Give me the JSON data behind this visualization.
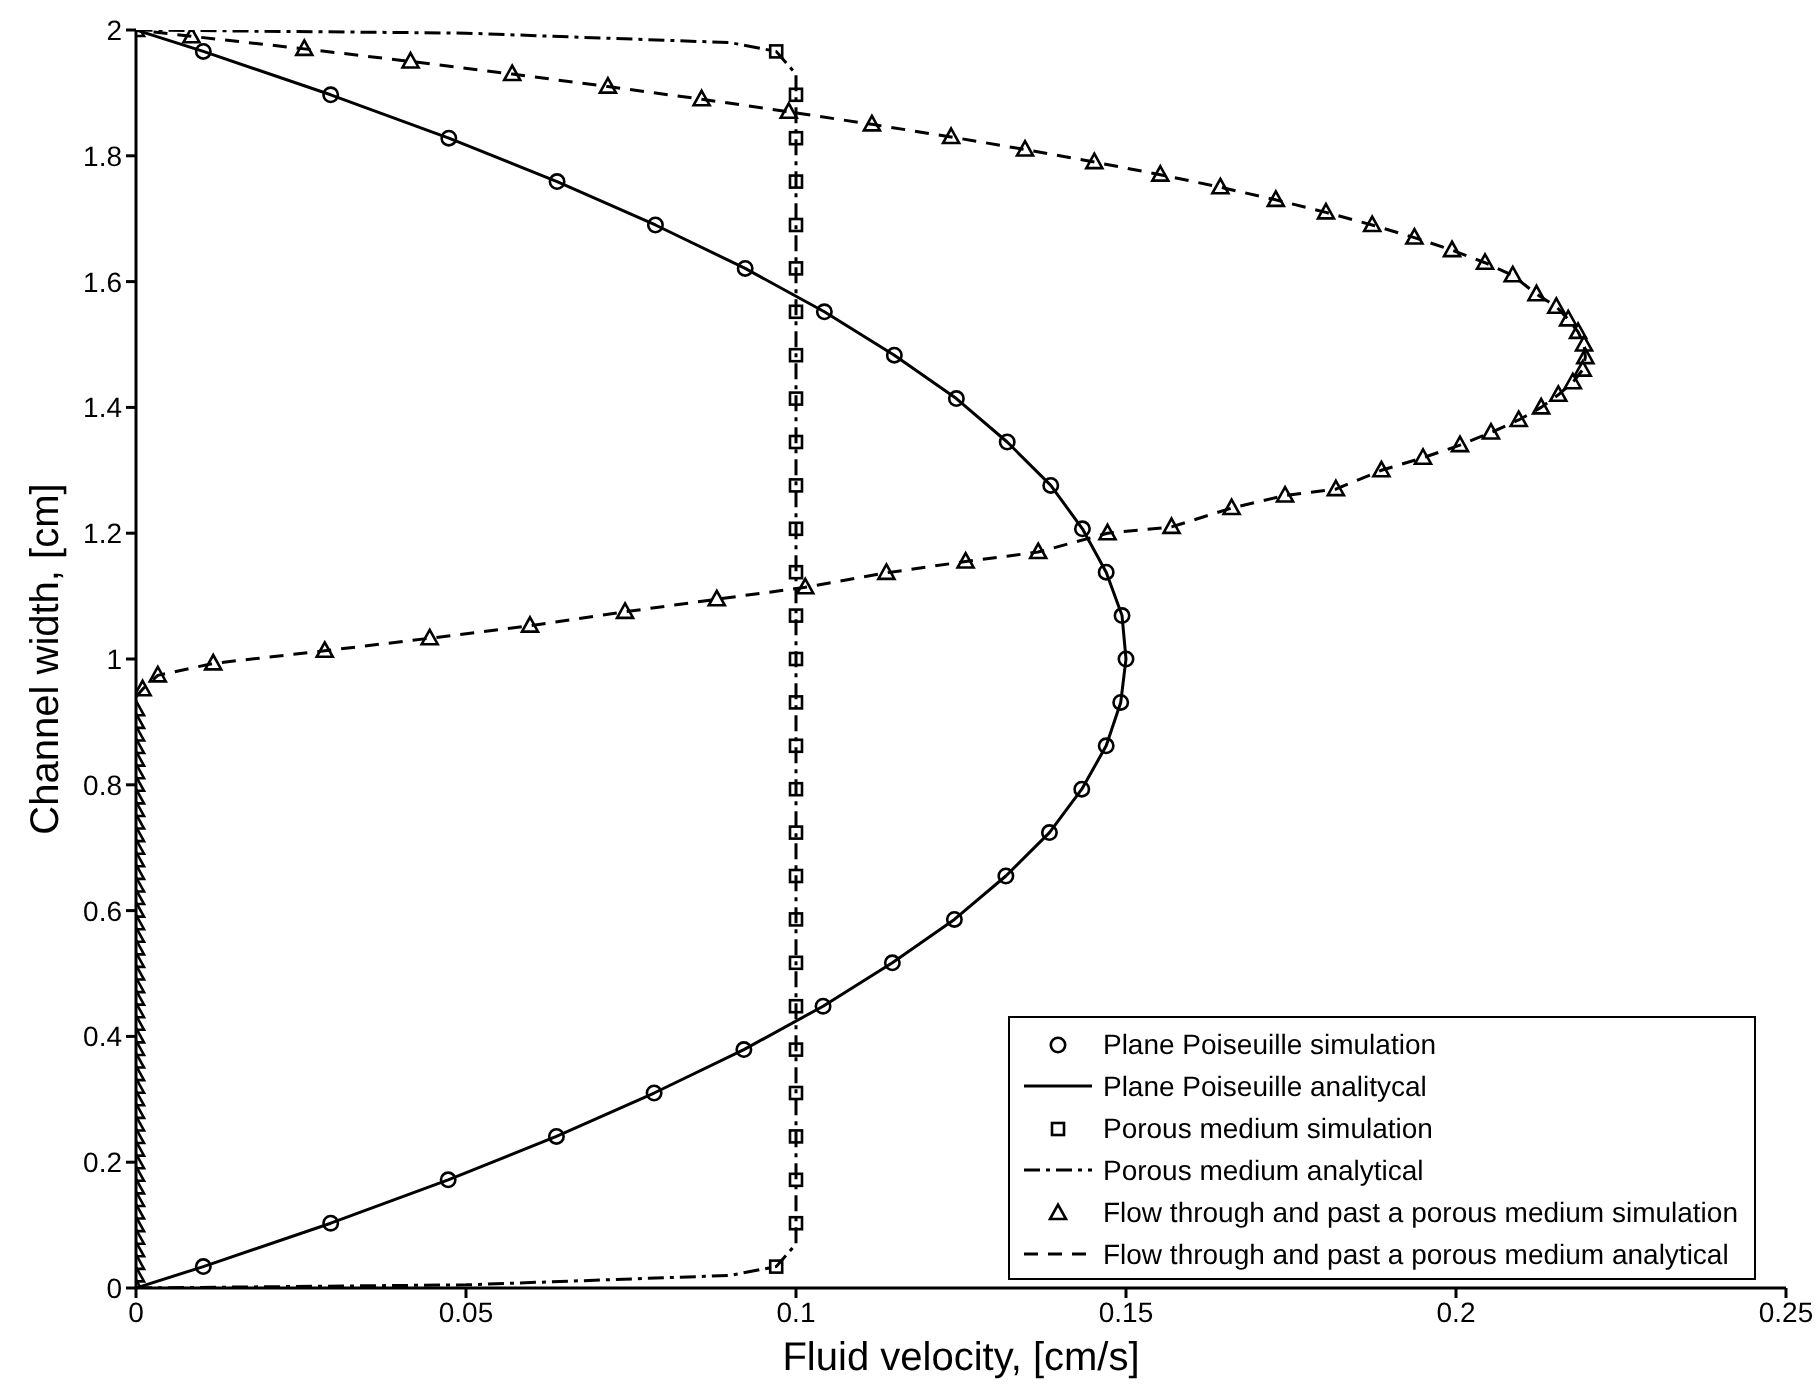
{
  "chart_data": {
    "type": "line",
    "xlabel": "Fluid velocity, [cm/s]",
    "ylabel": "Channel width, [cm]",
    "xlim": [
      0,
      0.25
    ],
    "xticks": [
      0,
      0.05,
      0.1,
      0.15,
      0.2,
      0.25
    ],
    "ylim": [
      0,
      2
    ],
    "yticks": [
      0,
      0.2,
      0.4,
      0.6,
      0.8,
      1,
      1.2,
      1.4,
      1.6,
      1.8,
      2
    ],
    "grid": false,
    "legend": "bottom right",
    "series": [
      {
        "name": "Plane Poiseuille simulation",
        "type": "scatter",
        "marker": "circle",
        "color": "#000000",
        "x": [
          0.0102,
          0.0295,
          0.0473,
          0.0637,
          0.0785,
          0.0921,
          0.1041,
          0.1146,
          0.124,
          0.1318,
          0.1384,
          0.1433,
          0.147,
          0.1492,
          0.15,
          0.1494,
          0.147,
          0.1434,
          0.1386,
          0.132,
          0.1243,
          0.1149,
          0.1043,
          0.0923,
          0.0787,
          0.0638,
          0.0474,
          0.0295,
          0.0102
        ],
        "values": [
          0.034,
          0.103,
          0.172,
          0.241,
          0.31,
          0.379,
          0.448,
          0.517,
          0.586,
          0.655,
          0.724,
          0.793,
          0.862,
          0.931,
          1.0,
          1.069,
          1.138,
          1.207,
          1.276,
          1.345,
          1.414,
          1.483,
          1.552,
          1.621,
          1.69,
          1.759,
          1.828,
          1.897,
          1.966
        ]
      },
      {
        "name": "Plane Poiseuille analitycal",
        "type": "line",
        "line_style": "solid",
        "marker": "none",
        "color": "#000000",
        "x": [
          0,
          0.0102,
          0.0295,
          0.0473,
          0.0637,
          0.0785,
          0.0921,
          0.1041,
          0.1146,
          0.124,
          0.1318,
          0.1384,
          0.1433,
          0.147,
          0.1492,
          0.15,
          0.1494,
          0.147,
          0.1434,
          0.1386,
          0.132,
          0.1243,
          0.1149,
          0.1043,
          0.0923,
          0.0787,
          0.0638,
          0.0474,
          0.0295,
          0.0102,
          0
        ],
        "values": [
          0,
          0.034,
          0.103,
          0.172,
          0.241,
          0.31,
          0.379,
          0.448,
          0.517,
          0.586,
          0.655,
          0.724,
          0.793,
          0.862,
          0.931,
          1.0,
          1.069,
          1.138,
          1.207,
          1.276,
          1.345,
          1.414,
          1.483,
          1.552,
          1.621,
          1.69,
          1.759,
          1.828,
          1.897,
          1.966,
          2
        ]
      },
      {
        "name": "Porous medium simulation",
        "type": "scatter",
        "marker": "square",
        "color": "#000000",
        "x": [
          0.097,
          0.1,
          0.1,
          0.1,
          0.1,
          0.1,
          0.1,
          0.1,
          0.1,
          0.1,
          0.1,
          0.1,
          0.1,
          0.1,
          0.1,
          0.1,
          0.1,
          0.1,
          0.1,
          0.1,
          0.1,
          0.1,
          0.1,
          0.1,
          0.1,
          0.1,
          0.1,
          0.1,
          0.097
        ],
        "values": [
          0.034,
          0.103,
          0.172,
          0.241,
          0.31,
          0.379,
          0.448,
          0.517,
          0.586,
          0.655,
          0.724,
          0.793,
          0.862,
          0.931,
          1.0,
          1.069,
          1.138,
          1.207,
          1.276,
          1.345,
          1.414,
          1.483,
          1.552,
          1.621,
          1.69,
          1.759,
          1.828,
          1.897,
          1.966
        ]
      },
      {
        "name": "Porous medium analytical",
        "type": "line",
        "line_style": "dashdot",
        "marker": "none",
        "color": "#000000",
        "x": [
          0,
          0.05,
          0.09,
          0.097,
          0.1,
          0.1,
          0.097,
          0.09,
          0.05,
          0
        ],
        "values": [
          0,
          0.005,
          0.02,
          0.034,
          0.07,
          1.93,
          1.966,
          1.98,
          1.995,
          2
        ]
      },
      {
        "name": "Flow through and past a porous medium simulation",
        "type": "scatter",
        "marker": "triangle",
        "color": "#000000",
        "x": [
          0,
          0,
          0,
          0,
          0,
          0,
          0,
          0,
          0,
          0,
          0,
          0,
          0,
          0,
          0,
          0,
          0,
          0,
          0,
          0,
          0,
          0,
          0,
          0,
          0,
          0,
          0,
          0,
          0,
          0,
          0,
          0,
          0,
          0,
          0,
          0,
          0,
          0,
          0,
          0,
          0,
          0,
          0,
          0,
          0,
          0,
          0,
          0.001,
          0.0033,
          0.0117,
          0.0286,
          0.0445,
          0.0597,
          0.0741,
          0.088,
          0.1014,
          0.1137,
          0.1257,
          0.1367,
          0.1472,
          0.1569,
          0.166,
          0.1741,
          0.1818,
          0.1887,
          0.195,
          0.2006,
          0.2053,
          0.2095,
          0.2129,
          0.2155,
          0.2177,
          0.2192,
          0.2196,
          0.2194,
          0.2185,
          0.217,
          0.2152,
          0.2122,
          0.2086,
          0.2044,
          0.1994,
          0.1937,
          0.1873,
          0.1803,
          0.1727,
          0.1643,
          0.1552,
          0.1452,
          0.1347,
          0.1235,
          0.1115,
          0.0989,
          0.0857,
          0.0715,
          0.057,
          0.0416,
          0.0255,
          0.0084,
          0
        ],
        "values": [
          0,
          0.02,
          0.04,
          0.06,
          0.08,
          0.1,
          0.12,
          0.14,
          0.16,
          0.18,
          0.2,
          0.22,
          0.24,
          0.26,
          0.28,
          0.3,
          0.32,
          0.34,
          0.36,
          0.38,
          0.4,
          0.42,
          0.44,
          0.46,
          0.48,
          0.5,
          0.52,
          0.54,
          0.56,
          0.58,
          0.6,
          0.62,
          0.64,
          0.66,
          0.68,
          0.7,
          0.72,
          0.74,
          0.76,
          0.78,
          0.8,
          0.82,
          0.84,
          0.86,
          0.88,
          0.9,
          0.92,
          0.952,
          0.974,
          0.993,
          1.013,
          1.033,
          1.053,
          1.075,
          1.095,
          1.114,
          1.137,
          1.155,
          1.17,
          1.2,
          1.21,
          1.24,
          1.26,
          1.27,
          1.3,
          1.32,
          1.34,
          1.36,
          1.38,
          1.4,
          1.42,
          1.44,
          1.46,
          1.48,
          1.5,
          1.52,
          1.54,
          1.56,
          1.58,
          1.61,
          1.63,
          1.65,
          1.67,
          1.69,
          1.71,
          1.73,
          1.75,
          1.77,
          1.79,
          1.81,
          1.83,
          1.85,
          1.87,
          1.89,
          1.91,
          1.93,
          1.95,
          1.97,
          1.99,
          2
        ]
      },
      {
        "name": "Flow through and past a porous medium analytical",
        "type": "line",
        "line_style": "dashed",
        "marker": "none",
        "color": "#000000",
        "x": [
          0,
          0.001,
          0.0033,
          0.0117,
          0.0286,
          0.0445,
          0.0597,
          0.0741,
          0.088,
          0.1014,
          0.1137,
          0.1257,
          0.1367,
          0.1472,
          0.1569,
          0.166,
          0.1741,
          0.1818,
          0.1887,
          0.195,
          0.2006,
          0.2053,
          0.2095,
          0.2129,
          0.2155,
          0.2177,
          0.2192,
          0.2196,
          0.2194,
          0.2185,
          0.217,
          0.2152,
          0.2122,
          0.2086,
          0.2044,
          0.1994,
          0.1937,
          0.1873,
          0.1803,
          0.1727,
          0.1643,
          0.1552,
          0.1452,
          0.1347,
          0.1235,
          0.1115,
          0.0989,
          0.0857,
          0.0715,
          0.057,
          0.0416,
          0.0255,
          0.0084,
          0
        ],
        "values": [
          0.94,
          0.952,
          0.974,
          0.993,
          1.013,
          1.033,
          1.053,
          1.075,
          1.095,
          1.114,
          1.137,
          1.155,
          1.17,
          1.2,
          1.21,
          1.24,
          1.26,
          1.27,
          1.3,
          1.32,
          1.34,
          1.36,
          1.38,
          1.4,
          1.42,
          1.44,
          1.46,
          1.48,
          1.5,
          1.52,
          1.54,
          1.56,
          1.58,
          1.61,
          1.63,
          1.65,
          1.67,
          1.69,
          1.71,
          1.73,
          1.75,
          1.77,
          1.79,
          1.81,
          1.83,
          1.85,
          1.87,
          1.89,
          1.91,
          1.93,
          1.95,
          1.97,
          1.99,
          2
        ]
      }
    ]
  }
}
